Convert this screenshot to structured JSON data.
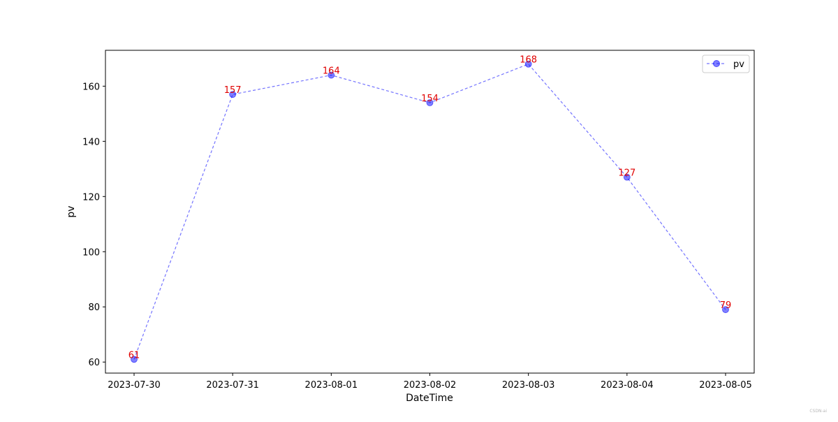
{
  "chart_data": {
    "type": "line",
    "x": [
      "2023-07-30",
      "2023-07-31",
      "2023-08-01",
      "2023-08-02",
      "2023-08-03",
      "2023-08-04",
      "2023-08-05"
    ],
    "series": [
      {
        "name": "pv",
        "values": [
          61,
          157,
          164,
          154,
          168,
          127,
          79
        ],
        "color": "#0000ff",
        "label_color": "#e00000",
        "line_style": "dashed",
        "marker": "circle"
      }
    ],
    "title": "",
    "xlabel": "DateTime",
    "ylabel": "pv",
    "ylim": [
      56,
      173
    ],
    "yticks": [
      60,
      80,
      100,
      120,
      140,
      160
    ],
    "grid": false,
    "legend": "top-right"
  },
  "watermark": "CSDN-ai"
}
